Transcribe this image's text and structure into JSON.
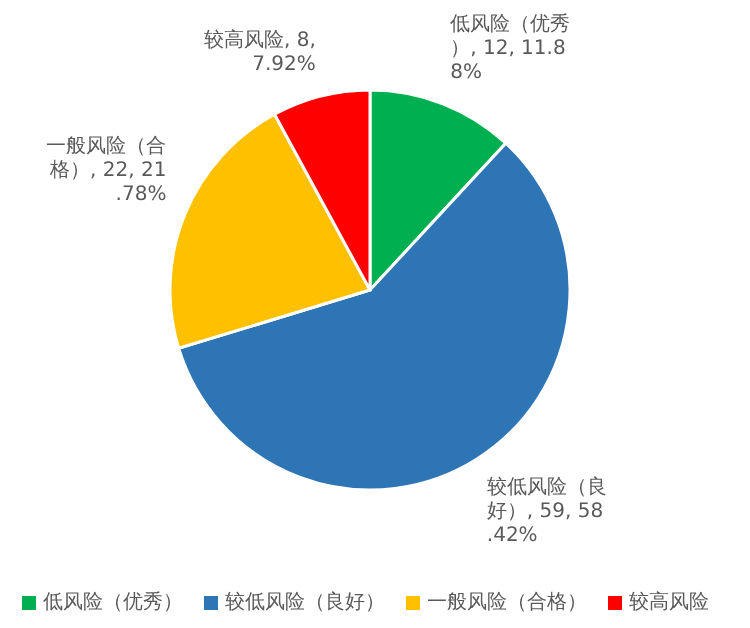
{
  "chart_data": {
    "type": "pie",
    "categories": [
      "低风险（优秀）",
      "较低风险（良好）",
      "一般风险（合格）",
      "较高风险"
    ],
    "values": [
      12,
      59,
      22,
      8
    ],
    "colors": [
      "#00b050",
      "#2e75b6",
      "#ffc000",
      "#ff0000"
    ],
    "value_labels": [
      "低风险（优秀）, 12, 11.88%",
      "较低风险（良好）, 59, 58.42%",
      "一般风险（合格）, 22, 21.78%",
      "较高风险, 8, 7.92%"
    ],
    "legend": "bottom"
  }
}
